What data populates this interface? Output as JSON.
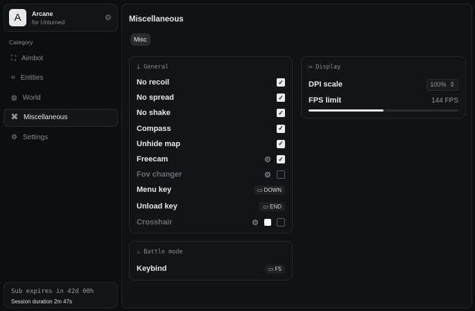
{
  "app": {
    "name": "Arcane",
    "subtitle": "for Unturned",
    "logo_letter": "A"
  },
  "sidebar": {
    "category_label": "Category",
    "items": [
      {
        "label": "Aimbot",
        "icon": "crosshair-icon",
        "active": false
      },
      {
        "label": "Entities",
        "icon": "scan-icon",
        "active": false
      },
      {
        "label": "World",
        "icon": "globe-icon",
        "active": false
      },
      {
        "label": "Miscellaneous",
        "icon": "grid-icon",
        "active": true
      },
      {
        "label": "Settings",
        "icon": "gear-icon",
        "active": false
      }
    ]
  },
  "footer": {
    "sub_expires": "Sub expires in 42d 00h",
    "session": "Session duration 2m 47s"
  },
  "main": {
    "title": "Miscellaneous",
    "tabs": [
      {
        "label": "Misc"
      }
    ]
  },
  "general": {
    "title": "General",
    "rows": [
      {
        "label": "No recoil",
        "checked": true,
        "gear": false
      },
      {
        "label": "No spread",
        "checked": true,
        "gear": false
      },
      {
        "label": "No shake",
        "checked": true,
        "gear": false
      },
      {
        "label": "Compass",
        "checked": true,
        "gear": false
      },
      {
        "label": "Unhide map",
        "checked": true,
        "gear": false
      },
      {
        "label": "Freecam",
        "checked": true,
        "gear": true
      },
      {
        "label": "Fov changer",
        "checked": false,
        "gear": true
      }
    ],
    "menu_key": {
      "label": "Menu key",
      "key": "DOWN"
    },
    "unload_key": {
      "label": "Unload key",
      "key": "END"
    },
    "crosshair": {
      "label": "Crosshair",
      "checked": false,
      "color": "#ffffff"
    }
  },
  "display": {
    "title": "Display",
    "dpi_label": "DPI scale",
    "dpi_value": "100%",
    "fps_label": "FPS limit",
    "fps_value": "144 FPS",
    "fps_slider_percent": 50
  },
  "battle": {
    "title": "Battle mode",
    "keybind_label": "Keybind",
    "key": "F5"
  }
}
